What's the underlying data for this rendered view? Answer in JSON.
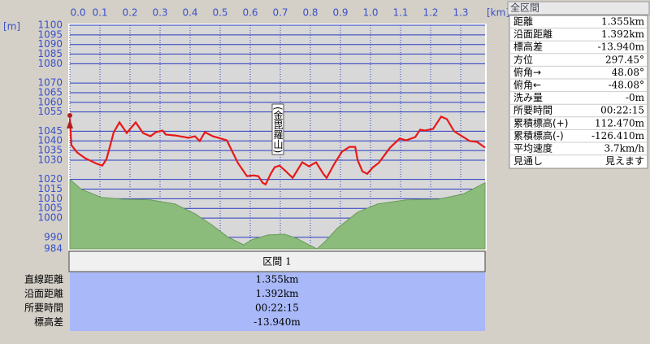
{
  "chart_data": {
    "type": "line",
    "x_unit": "[km]",
    "y_unit": "[m]",
    "annotation": "(金毘羅山)",
    "xlim": [
      0,
      1.381
    ],
    "ylim": [
      984,
      1100
    ],
    "xticks": [
      {
        "value": 0,
        "label": "0.0"
      },
      0.1,
      0.2,
      0.3,
      0.4,
      0.5,
      0.6,
      0.7,
      0.8,
      0.9,
      {
        "value": 1,
        "label": "1.0"
      },
      1.1,
      1.2,
      1.3
    ],
    "yticks": [
      1100,
      1095,
      1090,
      1085,
      1080,
      1070,
      1065,
      1060,
      1055,
      1045,
      1040,
      1035,
      1030,
      1020,
      1015,
      1010,
      1005,
      1000,
      990,
      984
    ],
    "grid": true,
    "series": [
      {
        "color": "#8cbc7c",
        "fill": true,
        "x": [
          0,
          0.038,
          0.105,
          0.173,
          0.268,
          0.349,
          0.416,
          0.47,
          0.524,
          0.578,
          0.605,
          0.659,
          0.714,
          0.754,
          0.795,
          0.822,
          0.849,
          0.889,
          0.957,
          1.024,
          1.119,
          1.227,
          1.308,
          1.381
        ],
        "values": [
          1020.0,
          1014.9,
          1010.7,
          1009.8,
          1009.4,
          1007.3,
          1002.2,
          996.7,
          990.3,
          986.1,
          988.7,
          991.2,
          991.6,
          989.5,
          986.1,
          984.0,
          987.8,
          994.6,
          1003.0,
          1007.3,
          1009.4,
          1009.8,
          1012.4,
          1018.3
        ]
      },
      {
        "color": "#e81818",
        "fill": false,
        "x": [
          0,
          0.005,
          0.024,
          0.051,
          0.092,
          0.108,
          0.122,
          0.146,
          0.165,
          0.189,
          0.219,
          0.243,
          0.268,
          0.286,
          0.308,
          0.319,
          0.351,
          0.395,
          0.416,
          0.432,
          0.449,
          0.476,
          0.503,
          0.522,
          0.559,
          0.589,
          0.611,
          0.627,
          0.641,
          0.651,
          0.668,
          0.681,
          0.697,
          0.716,
          0.741,
          0.773,
          0.795,
          0.819,
          0.843,
          0.854,
          0.881,
          0.905,
          0.93,
          0.949,
          0.957,
          0.973,
          0.989,
          1.008,
          1.027,
          1.065,
          1.097,
          1.119,
          1.149,
          1.165,
          1.181,
          1.208,
          1.235,
          1.254,
          1.278,
          1.33,
          1.354,
          1.381
        ],
        "values": [
          1051.7,
          1037.8,
          1034.0,
          1031.0,
          1028.0,
          1027.2,
          1030.6,
          1044.5,
          1049.6,
          1044.1,
          1049.6,
          1044.1,
          1042.4,
          1044.5,
          1045.4,
          1043.3,
          1042.8,
          1041.6,
          1042.4,
          1039.9,
          1044.5,
          1042.4,
          1041.2,
          1040.3,
          1028.5,
          1021.7,
          1022.1,
          1021.7,
          1018.3,
          1017.4,
          1022.9,
          1026.3,
          1027.2,
          1024.6,
          1020.8,
          1028.9,
          1026.8,
          1028.9,
          1022.9,
          1020.8,
          1028.5,
          1034.4,
          1036.9,
          1036.9,
          1030.1,
          1024.2,
          1022.9,
          1026.3,
          1028.5,
          1036.5,
          1041.2,
          1040.3,
          1042.0,
          1045.8,
          1045.4,
          1046.2,
          1052.6,
          1051.3,
          1045.0,
          1039.9,
          1039.5,
          1036.5
        ]
      }
    ]
  },
  "summary_panel": {
    "title": "全区間",
    "rows": [
      [
        "距離",
        "1.355km"
      ],
      [
        "沿面距離",
        "1.392km"
      ],
      [
        "標高差",
        "-13.940m"
      ],
      [
        "方位",
        "297.45°"
      ],
      [
        "俯角→",
        "48.08°"
      ],
      [
        "俯角←",
        "-48.08°"
      ],
      [
        "洗み量",
        "-0m"
      ],
      [
        "所要時間",
        "00:22:15"
      ],
      [
        "累積標高(+)",
        "112.470m"
      ],
      [
        "累積標高(-)",
        "-126.410m"
      ],
      [
        "平均速度",
        "3.7km/h"
      ],
      [
        "見通し",
        "見えます"
      ]
    ]
  },
  "section_table": {
    "header": "区間 1",
    "rows": [
      [
        "直線距離",
        "1.355km"
      ],
      [
        "沿面距離",
        "1.392km"
      ],
      [
        "所要時間",
        "00:22:15"
      ],
      [
        "標高差",
        "-13.940m"
      ]
    ]
  }
}
